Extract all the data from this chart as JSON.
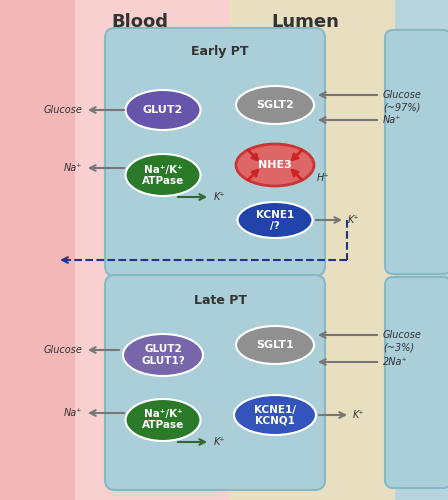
{
  "bg_blood_left": "#f5b8b8",
  "bg_blood_mid": "#f8d0d0",
  "bg_lumen": "#e8dfc0",
  "bg_right_blue": "#b8d4dc",
  "cell_color": "#aacfd8",
  "cell_edge": "#88b8c4",
  "glut2_early": "#6655aa",
  "glut2_late": "#7766aa",
  "natpase": "#2a7a2a",
  "sglt_color": "#909090",
  "nhe3_color": "#cc3333",
  "nhe3_fill": "#dd6666",
  "kcne1_early": "#2244aa",
  "kcne1_late": "#3355bb",
  "arrow_gray": "#777777",
  "arrow_green": "#336633",
  "arrow_red": "#cc2222",
  "arrow_dblue": "#223388",
  "text_color": "#333333",
  "blood_label": "Blood",
  "lumen_label": "Lumen",
  "early_pt_label": "Early PT",
  "late_pt_label": "Late PT"
}
